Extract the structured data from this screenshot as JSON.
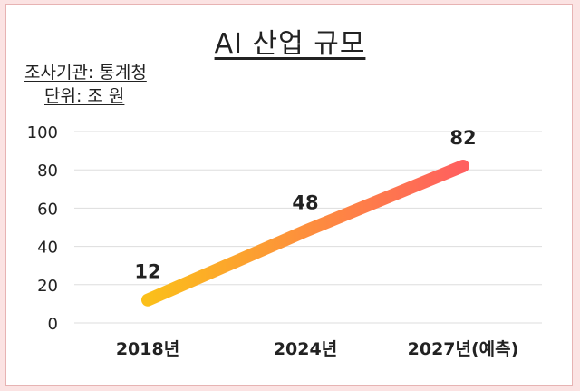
{
  "title": "AI 산업 규모",
  "source_note": "조사기관: 통계청",
  "unit_note": "단위: 조 원",
  "chart_data": {
    "type": "line",
    "categories": [
      "2018년",
      "2024년",
      "2027년(예측)"
    ],
    "values": [
      12,
      48,
      82
    ],
    "data_labels": [
      "12",
      "48",
      "82"
    ],
    "y_ticks": [
      "0",
      "20",
      "40",
      "60",
      "80",
      "100"
    ],
    "ylim": [
      0,
      100
    ],
    "grid": true,
    "line_gradient": [
      "#fbbf1a",
      "#ff5f5f"
    ],
    "grid_color": "#dddddd"
  }
}
